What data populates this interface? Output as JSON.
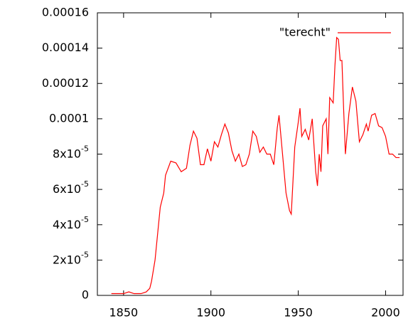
{
  "chart_data": {
    "type": "line",
    "x": [
      1843,
      1846,
      1850,
      1853,
      1856,
      1860,
      1863,
      1865,
      1866,
      1868,
      1871,
      1873,
      1874,
      1877,
      1880,
      1883,
      1886,
      1888,
      1890,
      1892,
      1894,
      1896,
      1898,
      1900,
      1902,
      1904,
      1906,
      1908,
      1910,
      1912,
      1914,
      1916,
      1918,
      1920,
      1922,
      1924,
      1926,
      1928,
      1930,
      1932,
      1934,
      1936,
      1938,
      1939,
      1941,
      1943,
      1945,
      1946,
      1948,
      1950,
      1951,
      1952,
      1954,
      1956,
      1958,
      1960,
      1961,
      1962,
      1963,
      1964,
      1966,
      1967,
      1968,
      1970,
      1971,
      1972,
      1973,
      1974,
      1975,
      1976,
      1977,
      1979,
      1981,
      1983,
      1985,
      1987,
      1989,
      1990,
      1992,
      1994,
      1996,
      1998,
      2000,
      2002,
      2004,
      2006,
      2008
    ],
    "series": [
      {
        "name": "\"terecht\"",
        "color": "#ff0000",
        "values": [
          1e-06,
          1e-06,
          1e-06,
          2e-06,
          1e-06,
          1e-06,
          2e-06,
          4e-06,
          8e-06,
          2e-05,
          5e-05,
          5.8e-05,
          6.8e-05,
          7.6e-05,
          7.5e-05,
          7e-05,
          7.2e-05,
          8.5e-05,
          9.3e-05,
          8.9e-05,
          7.4e-05,
          7.4e-05,
          8.3e-05,
          7.6e-05,
          8.7e-05,
          8.4e-05,
          9.1e-05,
          9.7e-05,
          9.2e-05,
          8.2e-05,
          7.6e-05,
          8e-05,
          7.3e-05,
          7.4e-05,
          8e-05,
          9.3e-05,
          9e-05,
          8.1e-05,
          8.4e-05,
          8e-05,
          8e-05,
          7.4e-05,
          9.5e-05,
          0.000102,
          8e-05,
          5.8e-05,
          4.8e-05,
          4.6e-05,
          8.4e-05,
          9.8e-05,
          0.000106,
          9e-05,
          9.4e-05,
          8.8e-05,
          0.0001,
          7e-05,
          6.2e-05,
          8e-05,
          7e-05,
          9.6e-05,
          0.0001,
          8e-05,
          0.000112,
          0.000109,
          0.00013,
          0.000146,
          0.000145,
          0.000133,
          0.000133,
          0.000105,
          8e-05,
          0.000103,
          0.000118,
          0.00011,
          8.7e-05,
          9.1e-05,
          9.7e-05,
          9.3e-05,
          0.000102,
          0.000103,
          9.6e-05,
          9.5e-05,
          9e-05,
          8e-05,
          8e-05,
          7.8e-05,
          7.8e-05
        ]
      }
    ],
    "xlim": [
      1835,
      2010
    ],
    "xticks": [
      1850,
      1900,
      1950,
      2000
    ],
    "ylim": [
      0,
      0.00016
    ],
    "yticks": [
      0,
      {
        "value": 2e-05,
        "label": "2x10-5"
      },
      {
        "value": 4e-05,
        "label": "4x10-5"
      },
      {
        "value": 6e-05,
        "label": "6x10-5"
      },
      {
        "value": 8e-05,
        "label": "8x10-5"
      },
      0.0001,
      0.00012,
      0.00014,
      0.00016
    ],
    "legend": "top-right"
  }
}
